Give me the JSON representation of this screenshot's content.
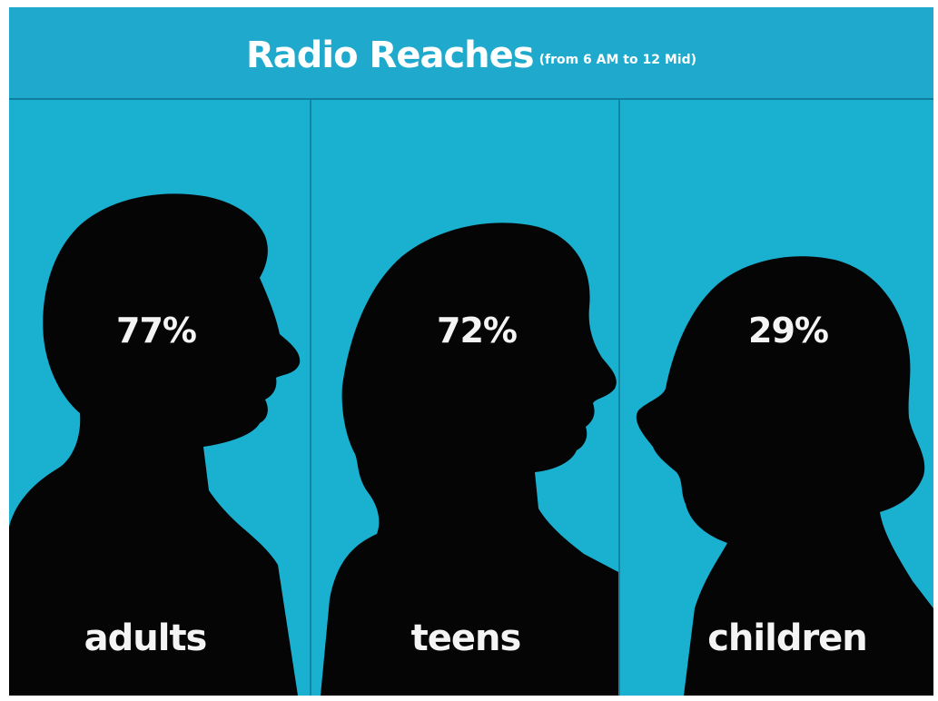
{
  "chart_data": {
    "type": "bar",
    "title": "Radio Reaches",
    "subtitle": "(from 6 AM to 12 Mid)",
    "categories": [
      "adults",
      "teens",
      "children"
    ],
    "values": [
      77,
      72,
      29
    ],
    "value_labels": [
      "77%",
      "72%",
      "29%"
    ],
    "unit": "%",
    "colors": {
      "background": "#1ab0d0",
      "silhouette": "#050505",
      "text": "#f4f4f4"
    }
  }
}
